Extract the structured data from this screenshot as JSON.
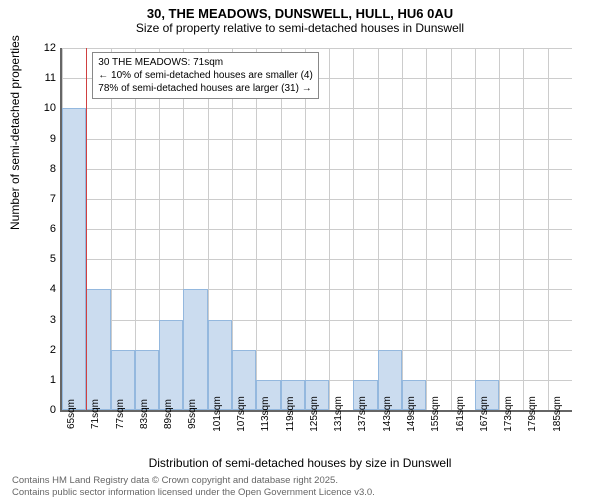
{
  "title": "30, THE MEADOWS, DUNSWELL, HULL, HU6 0AU",
  "subtitle": "Size of property relative to semi-detached houses in Dunswell",
  "chart": {
    "type": "histogram",
    "ylabel": "Number of semi-detached properties",
    "xlabel": "Distribution of semi-detached houses by size in Dunswell",
    "ylim": [
      0,
      12
    ],
    "ytick_step": 1,
    "x_categories": [
      "65sqm",
      "71sqm",
      "77sqm",
      "83sqm",
      "89sqm",
      "95sqm",
      "101sqm",
      "107sqm",
      "113sqm",
      "119sqm",
      "125sqm",
      "131sqm",
      "137sqm",
      "143sqm",
      "149sqm",
      "155sqm",
      "161sqm",
      "167sqm",
      "173sqm",
      "179sqm",
      "185sqm"
    ],
    "bars": [
      10,
      4,
      2,
      2,
      3,
      4,
      3,
      2,
      1,
      1,
      1,
      0,
      1,
      2,
      1,
      0,
      0,
      1,
      0,
      0,
      0
    ],
    "bar_color": "#cbdcef",
    "bar_border": "#94b8de",
    "grid_color": "#cccccc",
    "background_color": "#ffffff",
    "axis_color": "#666666",
    "ref_line_x_index": 1,
    "ref_line_color": "#d04040",
    "title_fontsize": 13,
    "subtitle_fontsize": 12,
    "label_fontsize": 12,
    "tick_fontsize": 11,
    "xtick_fontsize": 10,
    "annotation": {
      "line1": "30 THE MEADOWS: 71sqm",
      "line2": "← 10% of semi-detached houses are smaller (4)",
      "line3": "78% of semi-detached houses are larger (31) →",
      "fontsize": 10,
      "bg": "#ffffff",
      "border": "#888888"
    }
  },
  "footer": {
    "line1": "Contains HM Land Registry data © Crown copyright and database right 2025.",
    "line2": "Contains public sector information licensed under the Open Government Licence v3.0.",
    "color": "#666666",
    "fontsize": 9.5
  }
}
